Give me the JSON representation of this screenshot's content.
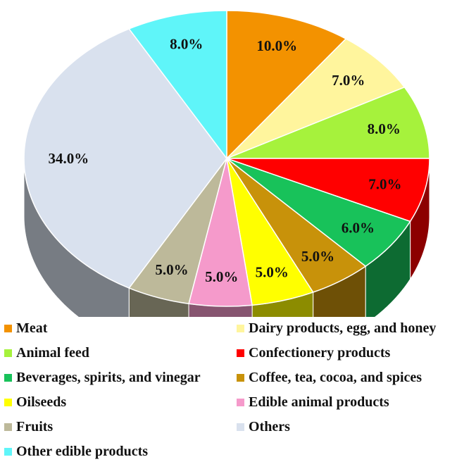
{
  "chart_data": {
    "type": "pie",
    "style": "3d",
    "unit": "%",
    "slices": [
      {
        "name": "Meat",
        "value": 10.0,
        "label": "10.0%",
        "color": "#F39200"
      },
      {
        "name": "Dairy products, egg, and honey",
        "value": 7.0,
        "label": "7.0%",
        "color": "#FFF59D"
      },
      {
        "name": "Animal feed",
        "value": 8.0,
        "label": "8.0%",
        "color": "#A6F23C"
      },
      {
        "name": "Confectionery products",
        "value": 7.0,
        "label": "7.0%",
        "color": "#FF0000"
      },
      {
        "name": "Beverages, spirits, and vinegar",
        "value": 6.0,
        "label": "6.0%",
        "color": "#18C25A"
      },
      {
        "name": "Coffee, tea, cocoa, and spices",
        "value": 5.0,
        "label": "5.0%",
        "color": "#C8920A"
      },
      {
        "name": "Oilseeds",
        "value": 5.0,
        "label": "5.0%",
        "color": "#FFFF00"
      },
      {
        "name": "Edible animal products",
        "value": 5.0,
        "label": "5.0%",
        "color": "#F59ACB"
      },
      {
        "name": "Fruits",
        "value": 5.0,
        "label": "5.0%",
        "color": "#BDB99A"
      },
      {
        "name": "Others",
        "value": 34.0,
        "label": "34.0%",
        "color": "#D9E1EE"
      },
      {
        "name": "Other edible products",
        "value": 8.0,
        "label": "8.0%",
        "color": "#5FF5F9"
      }
    ],
    "legend_position": "bottom"
  }
}
